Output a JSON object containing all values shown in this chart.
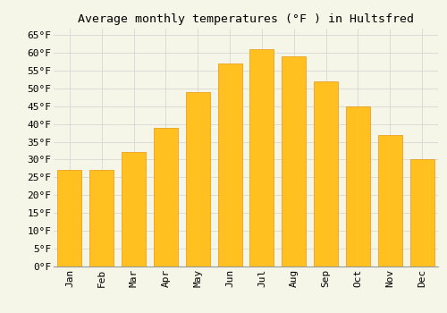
{
  "months": [
    "Jan",
    "Feb",
    "Mar",
    "Apr",
    "May",
    "Jun",
    "Jul",
    "Aug",
    "Sep",
    "Oct",
    "Nov",
    "Dec"
  ],
  "values": [
    27,
    27,
    32,
    39,
    49,
    57,
    61,
    59,
    52,
    45,
    37,
    30
  ],
  "bar_color_top": "#FFC020",
  "bar_color_bottom": "#F5A800",
  "bar_edge_color": "#E8960A",
  "title": "Average monthly temperatures (°F ) in Hultsfred",
  "ylim": [
    0,
    67
  ],
  "yticks": [
    0,
    5,
    10,
    15,
    20,
    25,
    30,
    35,
    40,
    45,
    50,
    55,
    60,
    65
  ],
  "ytick_labels": [
    "0°F",
    "5°F",
    "10°F",
    "15°F",
    "20°F",
    "25°F",
    "30°F",
    "35°F",
    "40°F",
    "45°F",
    "50°F",
    "55°F",
    "60°F",
    "65°F"
  ],
  "background_color": "#f5f5e8",
  "grid_color": "#d0d0d0",
  "title_fontsize": 9.5,
  "tick_fontsize": 8,
  "title_font": "monospace",
  "tick_font": "monospace",
  "bar_width": 0.75
}
